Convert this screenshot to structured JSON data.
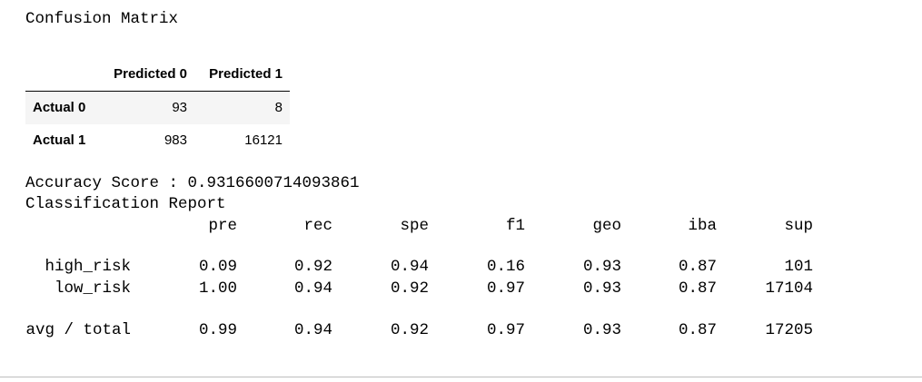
{
  "title": "Confusion Matrix",
  "matrix": {
    "columns": [
      "Predicted 0",
      "Predicted 1"
    ],
    "rows": [
      {
        "label": "Actual 0",
        "values": [
          "93",
          "8"
        ]
      },
      {
        "label": "Actual 1",
        "values": [
          "983",
          "16121"
        ]
      }
    ]
  },
  "accuracy": "Accuracy Score : 0.9316600714093861",
  "report": {
    "title": "Classification Report",
    "columns": [
      "pre",
      "rec",
      "spe",
      "f1",
      "geo",
      "iba",
      "sup"
    ],
    "rows": [
      {
        "label": "high_risk",
        "values": [
          "0.09",
          "0.92",
          "0.94",
          "0.16",
          "0.93",
          "0.87",
          "101"
        ]
      },
      {
        "label": "low_risk",
        "values": [
          "1.00",
          "0.94",
          "0.92",
          "0.97",
          "0.93",
          "0.87",
          "17104"
        ]
      },
      {
        "label": "avg / total",
        "values": [
          "0.99",
          "0.94",
          "0.92",
          "0.97",
          "0.93",
          "0.87",
          "17205"
        ]
      }
    ]
  }
}
